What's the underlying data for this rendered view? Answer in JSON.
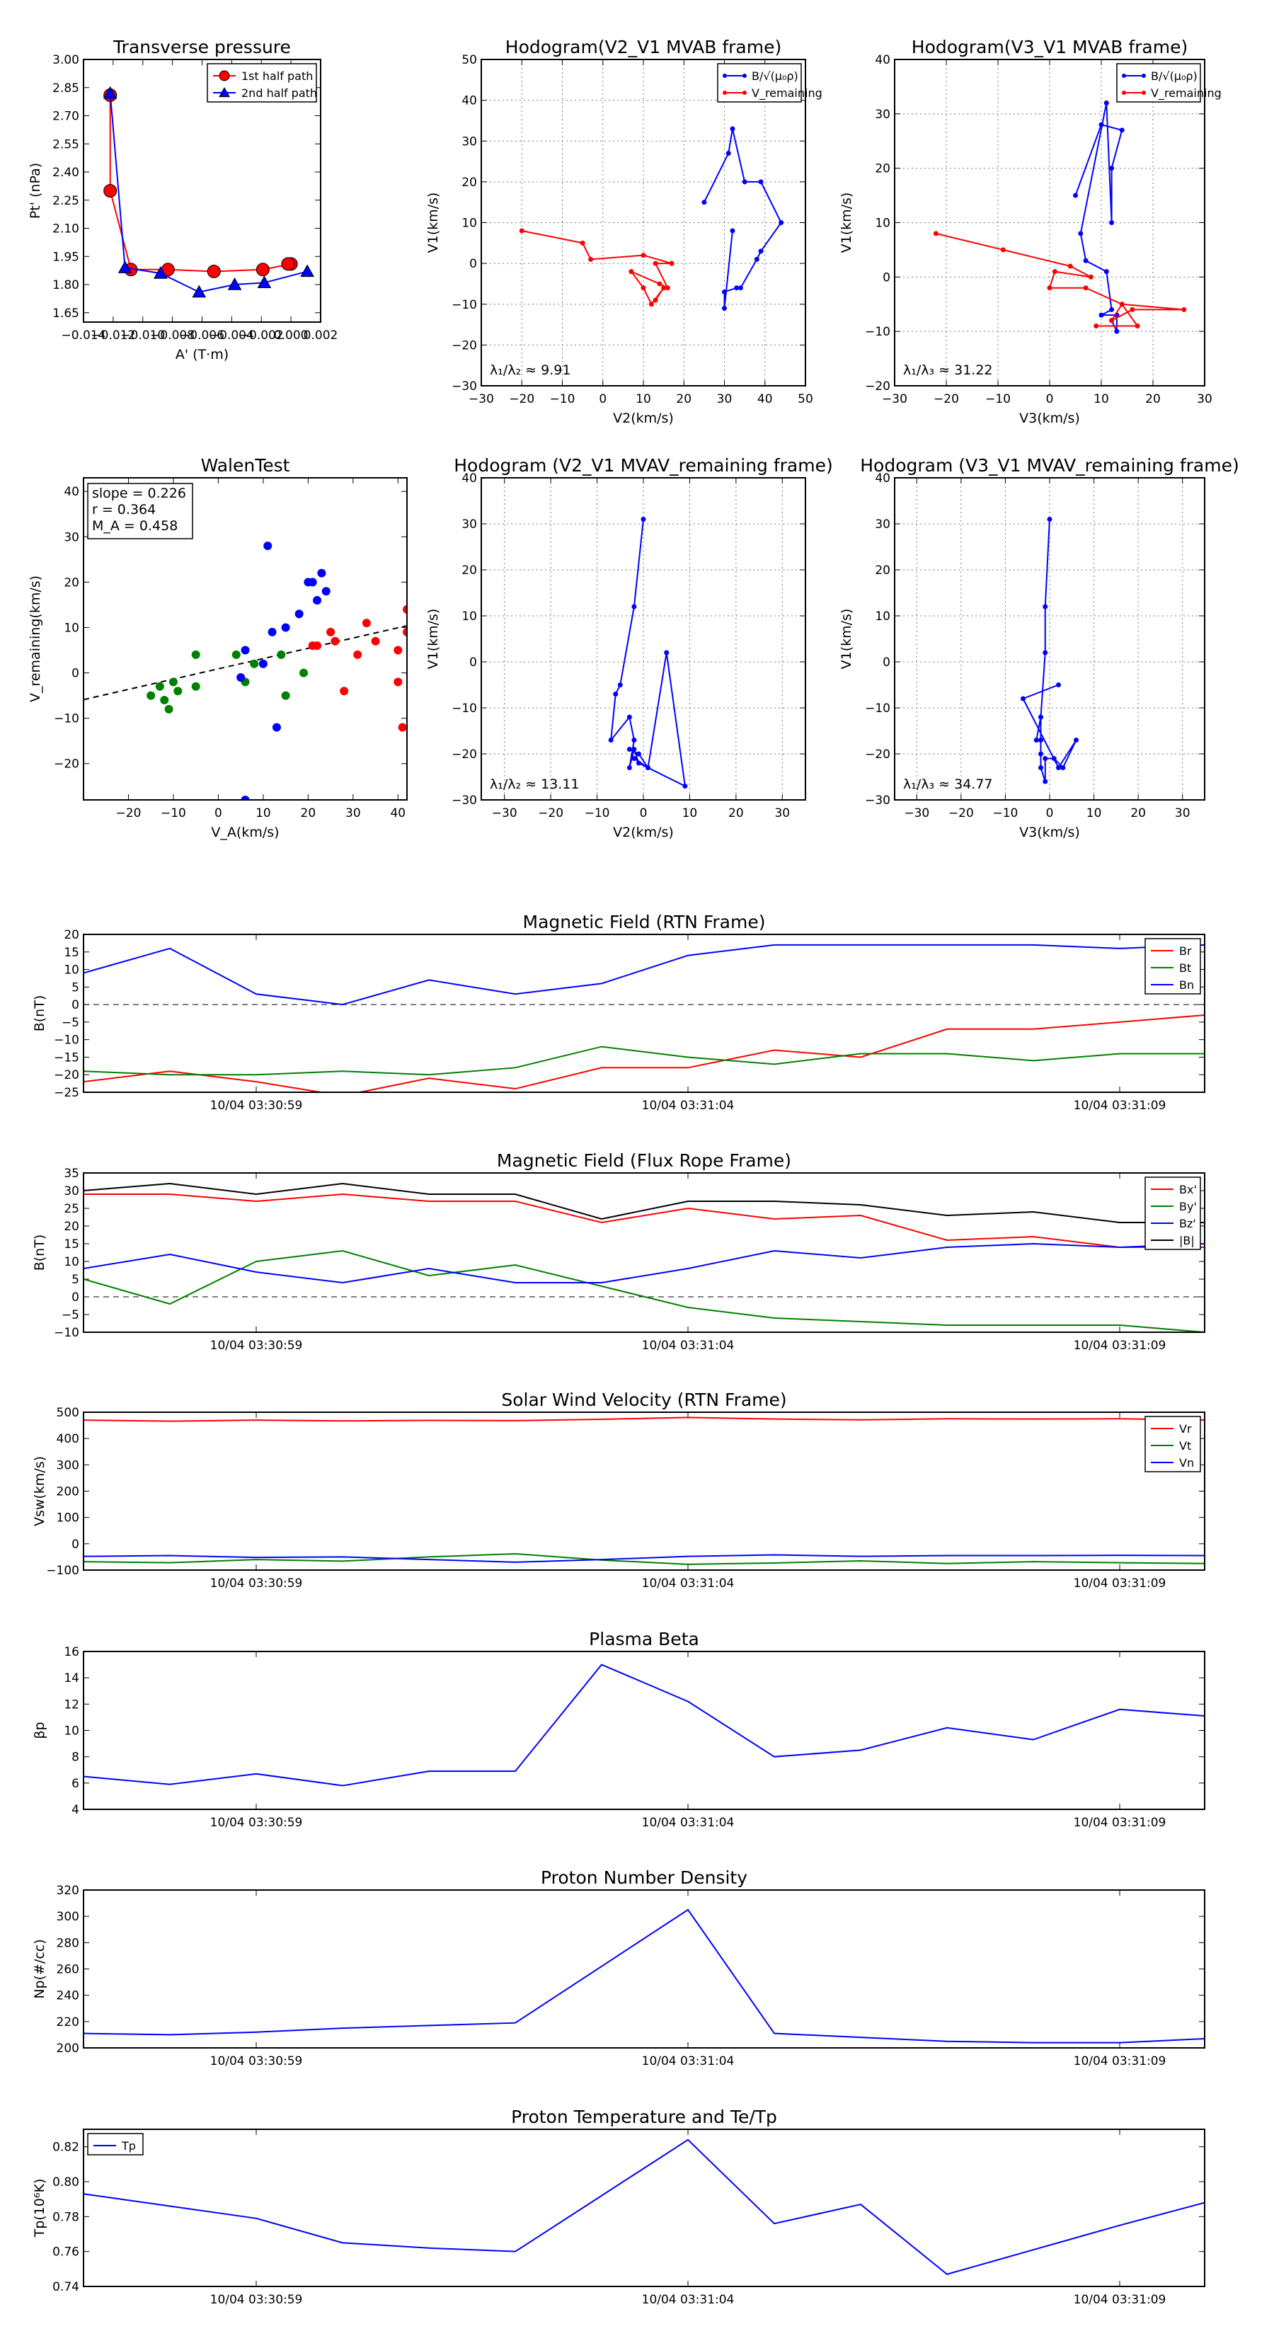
{
  "chart_data": [
    {
      "id": "p1",
      "type": "scatter",
      "title": "Transverse pressure",
      "xlabel": "A' (T·m)",
      "ylabel": "Pt' (nPa)",
      "xlim": [
        -0.014,
        0.002
      ],
      "ylim": [
        1.6,
        3.0
      ],
      "xticks": [
        -0.014,
        -0.012,
        -0.01,
        -0.008,
        -0.006,
        -0.004,
        -0.002,
        0.0,
        0.002
      ],
      "xtick_labels": [
        "−0.014",
        "−0.012",
        "−0.010",
        "−0.008",
        "−0.006",
        "−0.004",
        "−0.002",
        "0.000",
        "0.002"
      ],
      "yticks": [
        1.65,
        1.8,
        1.95,
        2.1,
        2.25,
        2.4,
        2.55,
        2.7,
        2.85,
        3.0
      ],
      "ytick_labels": [
        "1.65",
        "1.80",
        "1.95",
        "2.10",
        "2.25",
        "2.40",
        "2.55",
        "2.70",
        "2.85",
        "3.00"
      ],
      "legend": "top-right",
      "series": [
        {
          "name": "1st half path",
          "color": "#ff0000",
          "marker": "circle",
          "x": [
            -0.0122,
            -0.0122,
            -0.0108,
            -0.0083,
            -0.0052,
            -0.0019,
            0.0,
            -0.0002
          ],
          "y": [
            2.81,
            2.3,
            1.88,
            1.88,
            1.87,
            1.88,
            1.91,
            1.91
          ]
        },
        {
          "name": "2nd half path",
          "color": "#0000ff",
          "marker": "triangle",
          "x": [
            -0.0122,
            -0.0112,
            -0.0088,
            -0.0062,
            -0.0038,
            -0.0018,
            0.0011
          ],
          "y": [
            2.82,
            1.89,
            1.86,
            1.76,
            1.8,
            1.81,
            1.87
          ]
        }
      ]
    },
    {
      "id": "p2",
      "type": "line",
      "title": "Hodogram(V2_V1 MVAB frame)",
      "xlabel": "V2(km/s)",
      "ylabel": "V1(km/s)",
      "xlim": [
        -30,
        50
      ],
      "ylim": [
        -30,
        50
      ],
      "xticks": [
        -30,
        -20,
        -10,
        0,
        10,
        20,
        30,
        40,
        50
      ],
      "xtick_labels": [
        "−30",
        "−20",
        "−10",
        "0",
        "10",
        "20",
        "30",
        "40",
        "50"
      ],
      "yticks": [
        -30,
        -20,
        -10,
        0,
        10,
        20,
        30,
        40,
        50
      ],
      "ytick_labels": [
        "−30",
        "−20",
        "−10",
        "0",
        "10",
        "20",
        "30",
        "40",
        "50"
      ],
      "grid": true,
      "legend": "top-right",
      "annotation": "λ₁/λ₂ ≈ 9.91",
      "series": [
        {
          "name": "B/√(μ₀ρ)",
          "color": "#0000ff",
          "x": [
            25,
            31,
            32,
            35,
            39,
            44,
            39,
            38,
            34,
            33,
            30,
            30,
            32
          ],
          "y": [
            15,
            27,
            33,
            20,
            20,
            10,
            3,
            1,
            -6,
            -6,
            -7,
            -11,
            8
          ]
        },
        {
          "name": "V_remaining",
          "color": "#ff0000",
          "x": [
            -20,
            -5,
            -3,
            10,
            17,
            13,
            16,
            14,
            7,
            10,
            12,
            15,
            13
          ],
          "y": [
            8,
            5,
            1,
            2,
            0,
            0,
            -6,
            -5,
            -2,
            -6,
            -10,
            -6,
            -9
          ]
        }
      ]
    },
    {
      "id": "p3",
      "type": "line",
      "title": "Hodogram(V3_V1 MVAB frame)",
      "xlabel": "V3(km/s)",
      "ylabel": "V1(km/s)",
      "xlim": [
        -30,
        30
      ],
      "ylim": [
        -20,
        40
      ],
      "xticks": [
        -30,
        -20,
        -10,
        0,
        10,
        20,
        30
      ],
      "xtick_labels": [
        "−30",
        "−20",
        "−10",
        "0",
        "10",
        "20",
        "30"
      ],
      "yticks": [
        -20,
        -10,
        0,
        10,
        20,
        30,
        40
      ],
      "ytick_labels": [
        "−20",
        "−10",
        "0",
        "10",
        "20",
        "30",
        "40"
      ],
      "grid": true,
      "legend": "top-right",
      "annotation": "λ₁/λ₃ ≈ 31.22",
      "series": [
        {
          "name": "B/√(μ₀ρ)",
          "color": "#0000ff",
          "x": [
            5,
            10,
            14,
            12,
            12,
            11,
            6,
            7,
            11,
            12,
            10,
            13,
            13,
            12
          ],
          "y": [
            15,
            28,
            27,
            20,
            10,
            32,
            8,
            3,
            1,
            -6,
            -7,
            -7,
            -10,
            -8
          ]
        },
        {
          "name": "V_remaining",
          "color": "#ff0000",
          "x": [
            -22,
            -9,
            4,
            8,
            1,
            0,
            7,
            14,
            26,
            16,
            12,
            14,
            17,
            9
          ],
          "y": [
            8,
            5,
            2,
            0,
            1,
            -2,
            -2,
            -5,
            -6,
            -6,
            -8,
            -5,
            -9,
            -9
          ]
        }
      ]
    },
    {
      "id": "p4",
      "type": "scatter",
      "title": "WalenTest",
      "xlabel": "V_A(km/s)",
      "ylabel": "V_remaining(km/s)",
      "xlim": [
        -30,
        42
      ],
      "ylim": [
        -28,
        43
      ],
      "xticks": [
        -20,
        -10,
        0,
        10,
        20,
        30,
        40
      ],
      "xtick_labels": [
        "−20",
        "−10",
        "0",
        "10",
        "20",
        "30",
        "40"
      ],
      "yticks": [
        -20,
        -10,
        0,
        10,
        20,
        30,
        40
      ],
      "ytick_labels": [
        "−20",
        "−10",
        "0",
        "10",
        "20",
        "30",
        "40"
      ],
      "stats_lines": [
        "slope = 0.226",
        "r = 0.364",
        "M_A = 0.458"
      ],
      "fit_line": {
        "x": [
          -30,
          42
        ],
        "y": [
          -5.9,
          10.4
        ],
        "color": "#000000"
      },
      "series": [
        {
          "name": "green",
          "color": "#008000",
          "x": [
            -15,
            -13,
            -12,
            -11,
            -10,
            -9,
            -5,
            -5,
            4,
            6,
            8,
            14,
            15,
            19
          ],
          "y": [
            -5,
            -3,
            -6,
            -8,
            -2,
            -4,
            4,
            -3,
            4,
            -2,
            2,
            4,
            -5,
            0
          ]
        },
        {
          "name": "blue",
          "color": "#0000ff",
          "x": [
            5,
            6,
            10,
            11,
            12,
            13,
            15,
            18,
            20,
            21,
            22,
            23,
            24,
            6
          ],
          "y": [
            -1,
            5,
            2,
            28,
            9,
            -12,
            10,
            13,
            20,
            20,
            16,
            22,
            18,
            -28
          ]
        },
        {
          "name": "red",
          "color": "#ff0000",
          "x": [
            21,
            22,
            25,
            26,
            28,
            31,
            33,
            35,
            40,
            40,
            41,
            42,
            42
          ],
          "y": [
            6,
            6,
            9,
            7,
            -4,
            4,
            11,
            7,
            5,
            -2,
            -12,
            14,
            9
          ]
        }
      ]
    },
    {
      "id": "p5",
      "type": "line",
      "title": "Hodogram (V2_V1 MVAV_remaining frame)",
      "xlabel": "V2(km/s)",
      "ylabel": "V1(km/s)",
      "xlim": [
        -35,
        35
      ],
      "ylim": [
        -30,
        40
      ],
      "xticks": [
        -30,
        -20,
        -10,
        0,
        10,
        20,
        30
      ],
      "xtick_labels": [
        "−30",
        "−20",
        "−10",
        "0",
        "10",
        "20",
        "30"
      ],
      "yticks": [
        -30,
        -20,
        -10,
        0,
        10,
        20,
        30,
        40
      ],
      "ytick_labels": [
        "−30",
        "−20",
        "−10",
        "0",
        "10",
        "20",
        "30",
        "40"
      ],
      "grid": true,
      "annotation": "λ₁/λ₂ ≈ 13.11",
      "series": [
        {
          "name": "blue",
          "color": "#0000ff",
          "x": [
            0,
            -2,
            -5,
            -6,
            -7,
            -3,
            -2,
            -3,
            -2,
            -1,
            9,
            5,
            1,
            -2,
            1,
            -1,
            -3
          ],
          "y": [
            31,
            12,
            -5,
            -7,
            -17,
            -12,
            -17,
            -23,
            -19,
            -22,
            -27,
            2,
            -23,
            -21,
            -23,
            -20,
            -19
          ]
        }
      ]
    },
    {
      "id": "p6",
      "type": "line",
      "title": "Hodogram (V3_V1 MVAV_remaining frame)",
      "xlabel": "V3(km/s)",
      "ylabel": "V1(km/s)",
      "xlim": [
        -35,
        35
      ],
      "ylim": [
        -30,
        40
      ],
      "xticks": [
        -30,
        -20,
        -10,
        0,
        10,
        20,
        30
      ],
      "xtick_labels": [
        "−30",
        "−20",
        "−10",
        "0",
        "10",
        "20",
        "30"
      ],
      "yticks": [
        -30,
        -20,
        -10,
        0,
        10,
        20,
        30,
        40
      ],
      "ytick_labels": [
        "−30",
        "−20",
        "−10",
        "0",
        "10",
        "20",
        "30",
        "40"
      ],
      "grid": true,
      "annotation": "λ₁/λ₃ ≈ 34.77",
      "series": [
        {
          "name": "blue",
          "color": "#0000ff",
          "x": [
            0,
            -1,
            -1,
            -2,
            -2,
            -3,
            -2,
            -2,
            -2,
            -1,
            -1,
            1,
            3,
            6,
            2,
            -6,
            2
          ],
          "y": [
            31,
            12,
            2,
            -12,
            -17,
            -17,
            -12,
            -20,
            -23,
            -26,
            -21,
            -21,
            -23,
            -17,
            -23,
            -8,
            -5
          ]
        }
      ]
    },
    {
      "id": "ts1",
      "type": "line",
      "title": "Magnetic Field (RTN Frame)",
      "ylabel": "B(nT)",
      "ylim": [
        -25,
        20
      ],
      "yticks": [
        -25,
        -20,
        -15,
        -10,
        -5,
        0,
        5,
        10,
        15,
        20
      ],
      "ytick_labels": [
        "−25",
        "−20",
        "−15",
        "−10",
        "−5",
        "0",
        "5",
        "10",
        "15",
        "20"
      ],
      "zero_line": true,
      "legend": "top-right",
      "x_labels": [
        "10/04 03:30:59",
        "10/04 03:31:04",
        "10/04 03:31:09"
      ],
      "series": [
        {
          "name": "Br",
          "color": "#ff0000",
          "values": [
            -22,
            -19,
            -22,
            -26,
            -21,
            -24,
            -18,
            -18,
            -13,
            -15,
            -7,
            -7,
            -5,
            -3
          ]
        },
        {
          "name": "Bt",
          "color": "#008000",
          "values": [
            -19,
            -20,
            -20,
            -19,
            -20,
            -18,
            -12,
            -15,
            -17,
            -14,
            -14,
            -16,
            -14,
            -14
          ]
        },
        {
          "name": "Bn",
          "color": "#0000ff",
          "values": [
            9,
            16,
            3,
            0,
            7,
            3,
            6,
            14,
            17,
            17,
            17,
            17,
            16,
            17
          ]
        }
      ]
    },
    {
      "id": "ts2",
      "type": "line",
      "title": "Magnetic Field (Flux Rope Frame)",
      "ylabel": "B(nT)",
      "ylim": [
        -10,
        35
      ],
      "yticks": [
        -10,
        -5,
        0,
        5,
        10,
        15,
        20,
        25,
        30,
        35
      ],
      "ytick_labels": [
        "−10",
        "−5",
        "0",
        "5",
        "10",
        "15",
        "20",
        "25",
        "30",
        "35"
      ],
      "zero_line": true,
      "legend": "top-right",
      "x_labels": [
        "10/04 03:30:59",
        "10/04 03:31:04",
        "10/04 03:31:09"
      ],
      "series": [
        {
          "name": "Bx'",
          "color": "#ff0000",
          "values": [
            29,
            29,
            27,
            29,
            27,
            27,
            21,
            25,
            22,
            23,
            16,
            17,
            14,
            14
          ]
        },
        {
          "name": "By'",
          "color": "#008000",
          "values": [
            5,
            -2,
            10,
            13,
            6,
            9,
            3,
            -3,
            -6,
            -7,
            -8,
            -8,
            -8,
            -10
          ]
        },
        {
          "name": "Bz'",
          "color": "#0000ff",
          "values": [
            8,
            12,
            7,
            4,
            8,
            4,
            4,
            8,
            13,
            11,
            14,
            15,
            14,
            15
          ]
        },
        {
          "name": "|B|",
          "color": "#000000",
          "values": [
            30,
            32,
            29,
            32,
            29,
            29,
            22,
            27,
            27,
            26,
            23,
            24,
            21,
            21
          ]
        }
      ]
    },
    {
      "id": "ts3",
      "type": "line",
      "title": "Solar Wind Velocity (RTN Frame)",
      "ylabel": "Vsw(km/s)",
      "ylim": [
        -100,
        500
      ],
      "yticks": [
        -100,
        0,
        100,
        200,
        300,
        400,
        500
      ],
      "ytick_labels": [
        "−100",
        "0",
        "100",
        "200",
        "300",
        "400",
        "500"
      ],
      "legend": "top-right",
      "x_labels": [
        "10/04 03:30:59",
        "10/04 03:31:04",
        "10/04 03:31:09"
      ],
      "series": [
        {
          "name": "Vr",
          "color": "#ff0000",
          "values": [
            470,
            466,
            470,
            467,
            469,
            468,
            473,
            480,
            474,
            471,
            475,
            474,
            475,
            470
          ]
        },
        {
          "name": "Vt",
          "color": "#008000",
          "values": [
            -68,
            -72,
            -60,
            -66,
            -50,
            -38,
            -62,
            -78,
            -73,
            -65,
            -75,
            -68,
            -72,
            -75
          ]
        },
        {
          "name": "Vn",
          "color": "#0000ff",
          "values": [
            -48,
            -45,
            -52,
            -50,
            -60,
            -70,
            -60,
            -48,
            -42,
            -48,
            -45,
            -45,
            -44,
            -45
          ]
        }
      ]
    },
    {
      "id": "ts4",
      "type": "line",
      "title": "Plasma Beta",
      "ylabel": "βp",
      "ylim": [
        4,
        16
      ],
      "yticks": [
        4,
        6,
        8,
        10,
        12,
        14,
        16
      ],
      "ytick_labels": [
        "4",
        "6",
        "8",
        "10",
        "12",
        "14",
        "16"
      ],
      "x_labels": [
        "10/04 03:30:59",
        "10/04 03:31:04",
        "10/04 03:31:09"
      ],
      "series": [
        {
          "name": "beta",
          "color": "#0000ff",
          "values": [
            6.5,
            5.9,
            6.7,
            5.8,
            6.9,
            6.9,
            15.0,
            12.2,
            8.0,
            8.5,
            10.2,
            9.3,
            11.6,
            11.1
          ]
        }
      ]
    },
    {
      "id": "ts5",
      "type": "line",
      "title": "Proton Number Density",
      "ylabel": "Np(#/cc)",
      "ylim": [
        200,
        320
      ],
      "yticks": [
        200,
        220,
        240,
        260,
        280,
        300,
        320
      ],
      "ytick_labels": [
        "200",
        "220",
        "240",
        "260",
        "280",
        "300",
        "320"
      ],
      "x_labels": [
        "10/04 03:30:59",
        "10/04 03:31:04",
        "10/04 03:31:09"
      ],
      "series": [
        {
          "name": "Np",
          "color": "#0000ff",
          "values": [
            211,
            210,
            212,
            215,
            217,
            219,
            262,
            305,
            211,
            208,
            205,
            204,
            204,
            207
          ]
        }
      ]
    },
    {
      "id": "ts6",
      "type": "line",
      "title": "Proton Temperature and Te/Tp",
      "ylabel": "Tp(10⁶K)",
      "ylim": [
        0.74,
        0.83
      ],
      "yticks": [
        0.74,
        0.76,
        0.78,
        0.8,
        0.82
      ],
      "ytick_labels": [
        "0.74",
        "0.76",
        "0.78",
        "0.80",
        "0.82"
      ],
      "legend": "top-left",
      "x_labels": [
        "10/04 03:30:59",
        "10/04 03:31:04",
        "10/04 03:31:09"
      ],
      "series": [
        {
          "name": "Tp",
          "color": "#0000ff",
          "values": [
            0.793,
            0.786,
            0.779,
            0.765,
            0.762,
            0.76,
            0.792,
            0.824,
            0.776,
            0.787,
            0.747,
            0.761,
            0.775,
            0.788
          ]
        }
      ]
    }
  ]
}
